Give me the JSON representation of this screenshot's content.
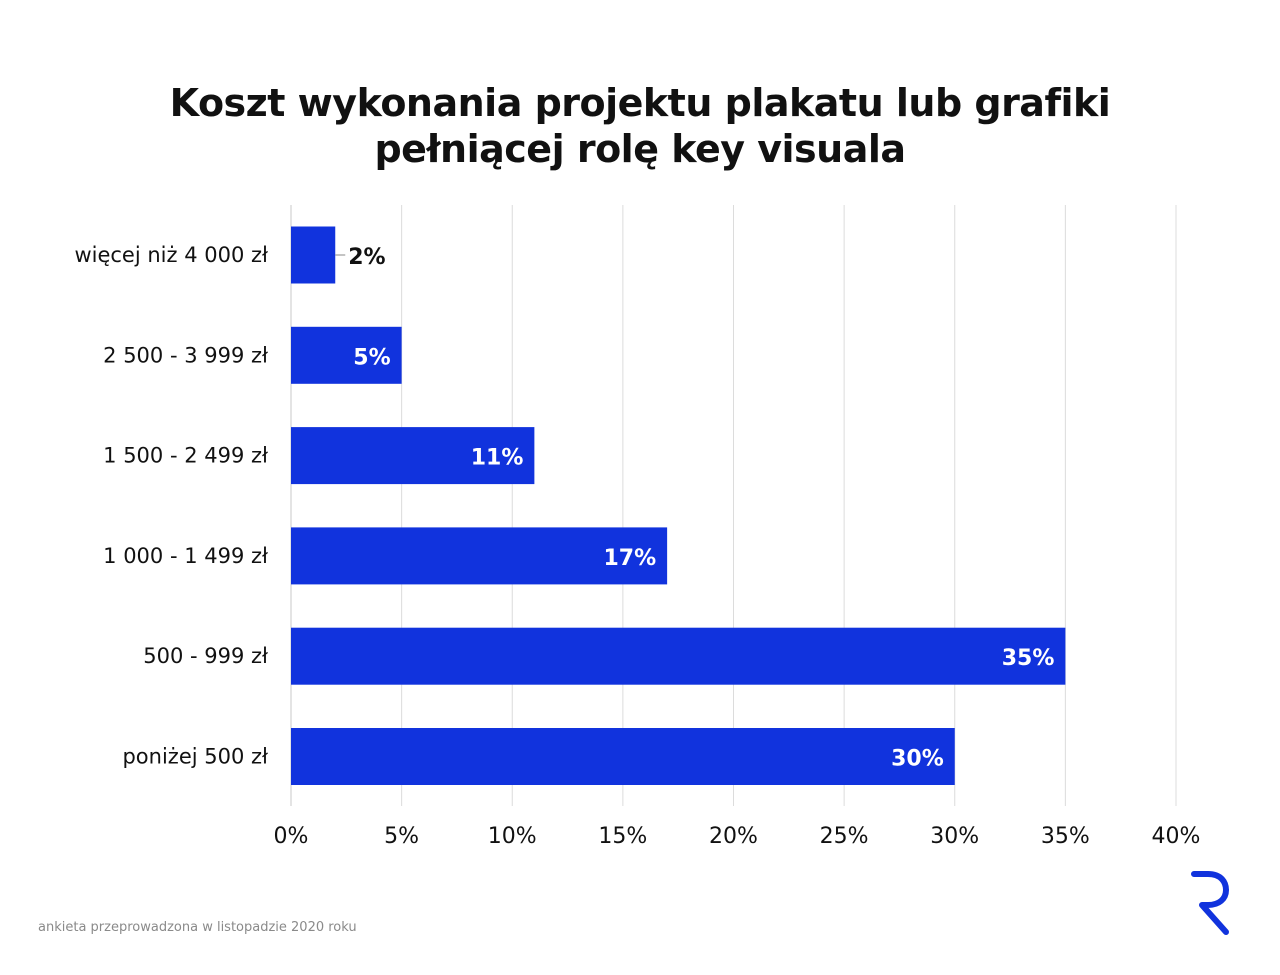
{
  "title_lines": [
    "Koszt wykonania projektu plakatu lub grafiki",
    "pełniącej rolę key visuala"
  ],
  "footnote": "ankieta przeprowadzona w listopadzie 2020 roku",
  "logo_icon": "r-logo-icon",
  "colors": {
    "bar": "#1133DD",
    "grid": "#dcdcdc",
    "label_inside": "#ffffff",
    "label_outside": "#111111"
  },
  "chart_data": {
    "type": "bar",
    "orientation": "horizontal",
    "title": "Koszt wykonania projektu plakatu lub grafiki pełniącej rolę key visuala",
    "categories": [
      "więcej niż 4 000 zł",
      "2 500 - 3 999 zł",
      "1 500 - 2 499 zł",
      "1 000 - 1 499 zł",
      "500 - 999 zł",
      "poniżej 500 zł"
    ],
    "values": [
      2,
      5,
      11,
      17,
      35,
      30
    ],
    "data_labels": [
      "2%",
      "5%",
      "11%",
      "17%",
      "35%",
      "30%"
    ],
    "xlim": [
      0,
      40
    ],
    "xticks": [
      0,
      5,
      10,
      15,
      20,
      25,
      30,
      35,
      40
    ],
    "xtick_labels": [
      "0%",
      "5%",
      "10%",
      "15%",
      "20%",
      "25%",
      "30%",
      "35%",
      "40%"
    ],
    "xlabel": "",
    "ylabel": "",
    "grid": true
  }
}
